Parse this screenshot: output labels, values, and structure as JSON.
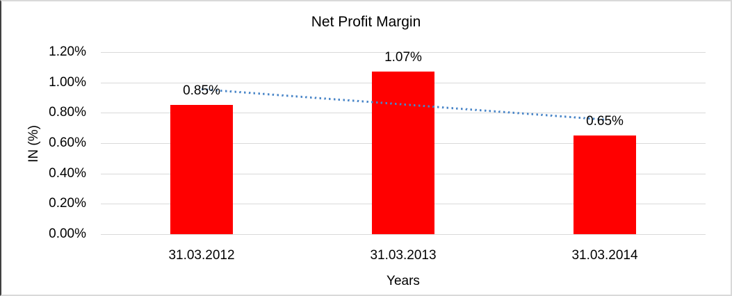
{
  "chart_data": {
    "type": "bar",
    "title": "Net Profit Margin",
    "xlabel": "Years",
    "ylabel": "IN (%)",
    "categories": [
      "31.03.2012",
      "31.03.2013",
      "31.03.2014"
    ],
    "values": [
      0.85,
      1.07,
      0.65
    ],
    "data_labels": [
      "0.85%",
      "1.07%",
      "0.65%"
    ],
    "ylim": [
      0,
      1.2
    ],
    "yticks": [
      1.2,
      1.0,
      0.8,
      0.6,
      0.4,
      0.2,
      0.0
    ],
    "ytick_labels": [
      "1.20%",
      "1.00%",
      "0.80%",
      "0.60%",
      "0.40%",
      "0.20%",
      "0.00%"
    ],
    "grid": true,
    "legend": false,
    "bar_color": "#ff0000",
    "gridline_color": "#d9d9d9",
    "trendline": {
      "type": "linear",
      "style": "dotted",
      "color": "#4a86c8"
    }
  }
}
